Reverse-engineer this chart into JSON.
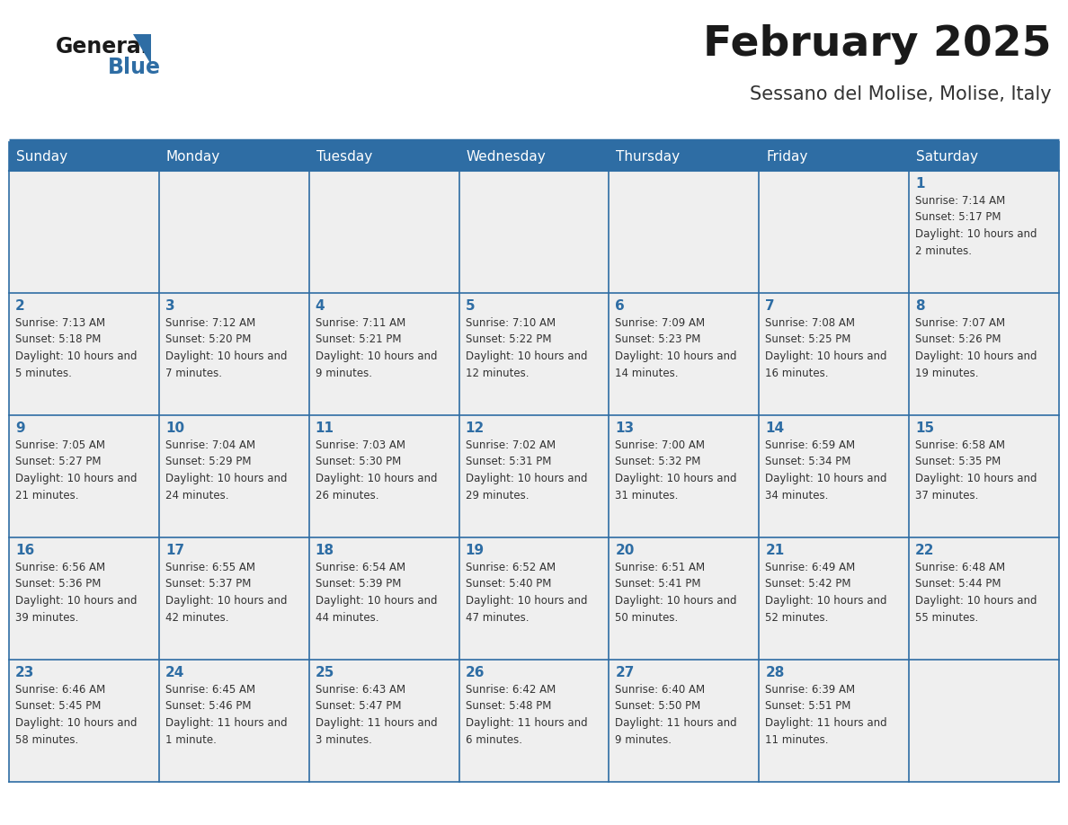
{
  "title": "February 2025",
  "subtitle": "Sessano del Molise, Molise, Italy",
  "header_bg_color": "#2E6DA4",
  "header_text_color": "#FFFFFF",
  "cell_bg_color": "#EFEFEF",
  "border_color": "#2E6DA4",
  "day_headers": [
    "Sunday",
    "Monday",
    "Tuesday",
    "Wednesday",
    "Thursday",
    "Friday",
    "Saturday"
  ],
  "title_color": "#1a1a1a",
  "subtitle_color": "#333333",
  "day_num_color": "#2E6DA4",
  "cell_text_color": "#333333",
  "logo_general_color": "#1a1a1a",
  "logo_blue_color": "#2E6DA4",
  "days": [
    {
      "day": 1,
      "col": 6,
      "row": 0,
      "sunrise": "7:14 AM",
      "sunset": "5:17 PM",
      "daylight": "10 hours and 2 minutes."
    },
    {
      "day": 2,
      "col": 0,
      "row": 1,
      "sunrise": "7:13 AM",
      "sunset": "5:18 PM",
      "daylight": "10 hours and 5 minutes."
    },
    {
      "day": 3,
      "col": 1,
      "row": 1,
      "sunrise": "7:12 AM",
      "sunset": "5:20 PM",
      "daylight": "10 hours and 7 minutes."
    },
    {
      "day": 4,
      "col": 2,
      "row": 1,
      "sunrise": "7:11 AM",
      "sunset": "5:21 PM",
      "daylight": "10 hours and 9 minutes."
    },
    {
      "day": 5,
      "col": 3,
      "row": 1,
      "sunrise": "7:10 AM",
      "sunset": "5:22 PM",
      "daylight": "10 hours and 12 minutes."
    },
    {
      "day": 6,
      "col": 4,
      "row": 1,
      "sunrise": "7:09 AM",
      "sunset": "5:23 PM",
      "daylight": "10 hours and 14 minutes."
    },
    {
      "day": 7,
      "col": 5,
      "row": 1,
      "sunrise": "7:08 AM",
      "sunset": "5:25 PM",
      "daylight": "10 hours and 16 minutes."
    },
    {
      "day": 8,
      "col": 6,
      "row": 1,
      "sunrise": "7:07 AM",
      "sunset": "5:26 PM",
      "daylight": "10 hours and 19 minutes."
    },
    {
      "day": 9,
      "col": 0,
      "row": 2,
      "sunrise": "7:05 AM",
      "sunset": "5:27 PM",
      "daylight": "10 hours and 21 minutes."
    },
    {
      "day": 10,
      "col": 1,
      "row": 2,
      "sunrise": "7:04 AM",
      "sunset": "5:29 PM",
      "daylight": "10 hours and 24 minutes."
    },
    {
      "day": 11,
      "col": 2,
      "row": 2,
      "sunrise": "7:03 AM",
      "sunset": "5:30 PM",
      "daylight": "10 hours and 26 minutes."
    },
    {
      "day": 12,
      "col": 3,
      "row": 2,
      "sunrise": "7:02 AM",
      "sunset": "5:31 PM",
      "daylight": "10 hours and 29 minutes."
    },
    {
      "day": 13,
      "col": 4,
      "row": 2,
      "sunrise": "7:00 AM",
      "sunset": "5:32 PM",
      "daylight": "10 hours and 31 minutes."
    },
    {
      "day": 14,
      "col": 5,
      "row": 2,
      "sunrise": "6:59 AM",
      "sunset": "5:34 PM",
      "daylight": "10 hours and 34 minutes."
    },
    {
      "day": 15,
      "col": 6,
      "row": 2,
      "sunrise": "6:58 AM",
      "sunset": "5:35 PM",
      "daylight": "10 hours and 37 minutes."
    },
    {
      "day": 16,
      "col": 0,
      "row": 3,
      "sunrise": "6:56 AM",
      "sunset": "5:36 PM",
      "daylight": "10 hours and 39 minutes."
    },
    {
      "day": 17,
      "col": 1,
      "row": 3,
      "sunrise": "6:55 AM",
      "sunset": "5:37 PM",
      "daylight": "10 hours and 42 minutes."
    },
    {
      "day": 18,
      "col": 2,
      "row": 3,
      "sunrise": "6:54 AM",
      "sunset": "5:39 PM",
      "daylight": "10 hours and 44 minutes."
    },
    {
      "day": 19,
      "col": 3,
      "row": 3,
      "sunrise": "6:52 AM",
      "sunset": "5:40 PM",
      "daylight": "10 hours and 47 minutes."
    },
    {
      "day": 20,
      "col": 4,
      "row": 3,
      "sunrise": "6:51 AM",
      "sunset": "5:41 PM",
      "daylight": "10 hours and 50 minutes."
    },
    {
      "day": 21,
      "col": 5,
      "row": 3,
      "sunrise": "6:49 AM",
      "sunset": "5:42 PM",
      "daylight": "10 hours and 52 minutes."
    },
    {
      "day": 22,
      "col": 6,
      "row": 3,
      "sunrise": "6:48 AM",
      "sunset": "5:44 PM",
      "daylight": "10 hours and 55 minutes."
    },
    {
      "day": 23,
      "col": 0,
      "row": 4,
      "sunrise": "6:46 AM",
      "sunset": "5:45 PM",
      "daylight": "10 hours and 58 minutes."
    },
    {
      "day": 24,
      "col": 1,
      "row": 4,
      "sunrise": "6:45 AM",
      "sunset": "5:46 PM",
      "daylight": "11 hours and 1 minute."
    },
    {
      "day": 25,
      "col": 2,
      "row": 4,
      "sunrise": "6:43 AM",
      "sunset": "5:47 PM",
      "daylight": "11 hours and 3 minutes."
    },
    {
      "day": 26,
      "col": 3,
      "row": 4,
      "sunrise": "6:42 AM",
      "sunset": "5:48 PM",
      "daylight": "11 hours and 6 minutes."
    },
    {
      "day": 27,
      "col": 4,
      "row": 4,
      "sunrise": "6:40 AM",
      "sunset": "5:50 PM",
      "daylight": "11 hours and 9 minutes."
    },
    {
      "day": 28,
      "col": 5,
      "row": 4,
      "sunrise": "6:39 AM",
      "sunset": "5:51 PM",
      "daylight": "11 hours and 11 minutes."
    }
  ]
}
